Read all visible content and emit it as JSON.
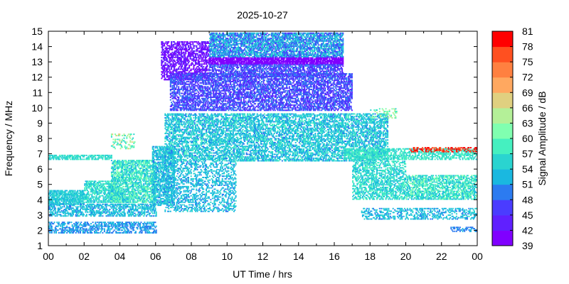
{
  "chart_data": {
    "type": "heatmap",
    "title": "2025-10-27",
    "xlabel": "UT Time / hrs",
    "ylabel": "Frequency / MHz",
    "colorbar_label": "Signal Amplitude / dB",
    "xlim": [
      0,
      24
    ],
    "ylim": [
      1,
      15
    ],
    "x_ticks": [
      "00",
      "02",
      "04",
      "06",
      "08",
      "10",
      "12",
      "14",
      "16",
      "18",
      "20",
      "22",
      "00"
    ],
    "y_ticks": [
      "1",
      "2",
      "3",
      "4",
      "5",
      "6",
      "7",
      "8",
      "9",
      "10",
      "11",
      "12",
      "13",
      "14",
      "15"
    ],
    "colorbar_ticks": [
      "81",
      "78",
      "75",
      "72",
      "69",
      "66",
      "63",
      "60",
      "57",
      "54",
      "51",
      "48",
      "45",
      "42",
      "39"
    ],
    "colorbar_range": [
      39,
      81
    ],
    "colormap": [
      "#8000ff",
      "#6020ff",
      "#4a3cff",
      "#2c7bf0",
      "#1ab8e0",
      "#2ad4d0",
      "#45f0c0",
      "#80ffb0",
      "#b4f098",
      "#e0d080",
      "#ffa860",
      "#ff8040",
      "#ff5020",
      "#ff0000"
    ],
    "bands": [
      {
        "t0": 0.0,
        "t1": 2.0,
        "f0": 3.7,
        "f1": 4.6,
        "db": [
          52,
          57
        ],
        "density": 0.75
      },
      {
        "t0": 0.0,
        "t1": 6.0,
        "f0": 2.9,
        "f1": 3.7,
        "db": [
          50,
          56
        ],
        "density": 0.55
      },
      {
        "t0": 0.0,
        "t1": 6.0,
        "f0": 1.8,
        "f1": 2.5,
        "db": [
          48,
          54
        ],
        "density": 0.5
      },
      {
        "t0": 0.0,
        "t1": 3.5,
        "f0": 6.6,
        "f1": 6.9,
        "db": [
          54,
          58
        ],
        "density": 0.6
      },
      {
        "t0": 2.0,
        "t1": 4.0,
        "f0": 3.8,
        "f1": 5.2,
        "db": [
          52,
          60
        ],
        "density": 0.6
      },
      {
        "t0": 3.5,
        "t1": 6.0,
        "f0": 3.8,
        "f1": 6.6,
        "db": [
          52,
          62
        ],
        "density": 0.65
      },
      {
        "t0": 3.5,
        "t1": 4.8,
        "f0": 7.3,
        "f1": 8.3,
        "db": [
          54,
          68
        ],
        "density": 0.25
      },
      {
        "t0": 5.8,
        "t1": 7.0,
        "f0": 3.6,
        "f1": 7.5,
        "db": [
          50,
          57
        ],
        "density": 0.6
      },
      {
        "t0": 6.3,
        "t1": 9.0,
        "f0": 11.8,
        "f1": 14.3,
        "db": [
          40,
          45
        ],
        "density": 0.55
      },
      {
        "t0": 6.8,
        "t1": 17.0,
        "f0": 9.8,
        "f1": 12.2,
        "db": [
          44,
          50
        ],
        "density": 0.6
      },
      {
        "t0": 9.0,
        "t1": 16.5,
        "f0": 12.8,
        "f1": 13.3,
        "db": [
          39,
          42
        ],
        "density": 0.85
      },
      {
        "t0": 9.0,
        "t1": 16.5,
        "f0": 13.3,
        "f1": 15.0,
        "db": [
          46,
          56
        ],
        "density": 0.7
      },
      {
        "t0": 9.0,
        "t1": 16.5,
        "f0": 12.0,
        "f1": 12.8,
        "db": [
          44,
          50
        ],
        "density": 0.6
      },
      {
        "t0": 6.5,
        "t1": 19.0,
        "f0": 6.5,
        "f1": 9.6,
        "db": [
          50,
          58
        ],
        "density": 0.55
      },
      {
        "t0": 6.5,
        "t1": 10.5,
        "f0": 3.2,
        "f1": 6.5,
        "db": [
          50,
          56
        ],
        "density": 0.35
      },
      {
        "t0": 17.0,
        "t1": 20.0,
        "f0": 4.0,
        "f1": 6.5,
        "db": [
          52,
          60
        ],
        "density": 0.5
      },
      {
        "t0": 16.5,
        "t1": 24.0,
        "f0": 6.6,
        "f1": 7.3,
        "db": [
          54,
          60
        ],
        "density": 0.55
      },
      {
        "t0": 20.0,
        "t1": 24.0,
        "f0": 4.0,
        "f1": 5.6,
        "db": [
          52,
          62
        ],
        "density": 0.6
      },
      {
        "t0": 17.5,
        "t1": 24.0,
        "f0": 2.7,
        "f1": 3.4,
        "db": [
          50,
          56
        ],
        "density": 0.35
      },
      {
        "t0": 18.0,
        "t1": 19.5,
        "f0": 9.3,
        "f1": 9.9,
        "db": [
          56,
          66
        ],
        "density": 0.3
      },
      {
        "t0": 20.2,
        "t1": 24.0,
        "f0": 7.1,
        "f1": 7.4,
        "db": [
          76,
          81
        ],
        "density": 0.45
      },
      {
        "t0": 22.5,
        "t1": 24.0,
        "f0": 1.9,
        "f1": 2.2,
        "db": [
          48,
          52
        ],
        "density": 0.45
      }
    ]
  }
}
